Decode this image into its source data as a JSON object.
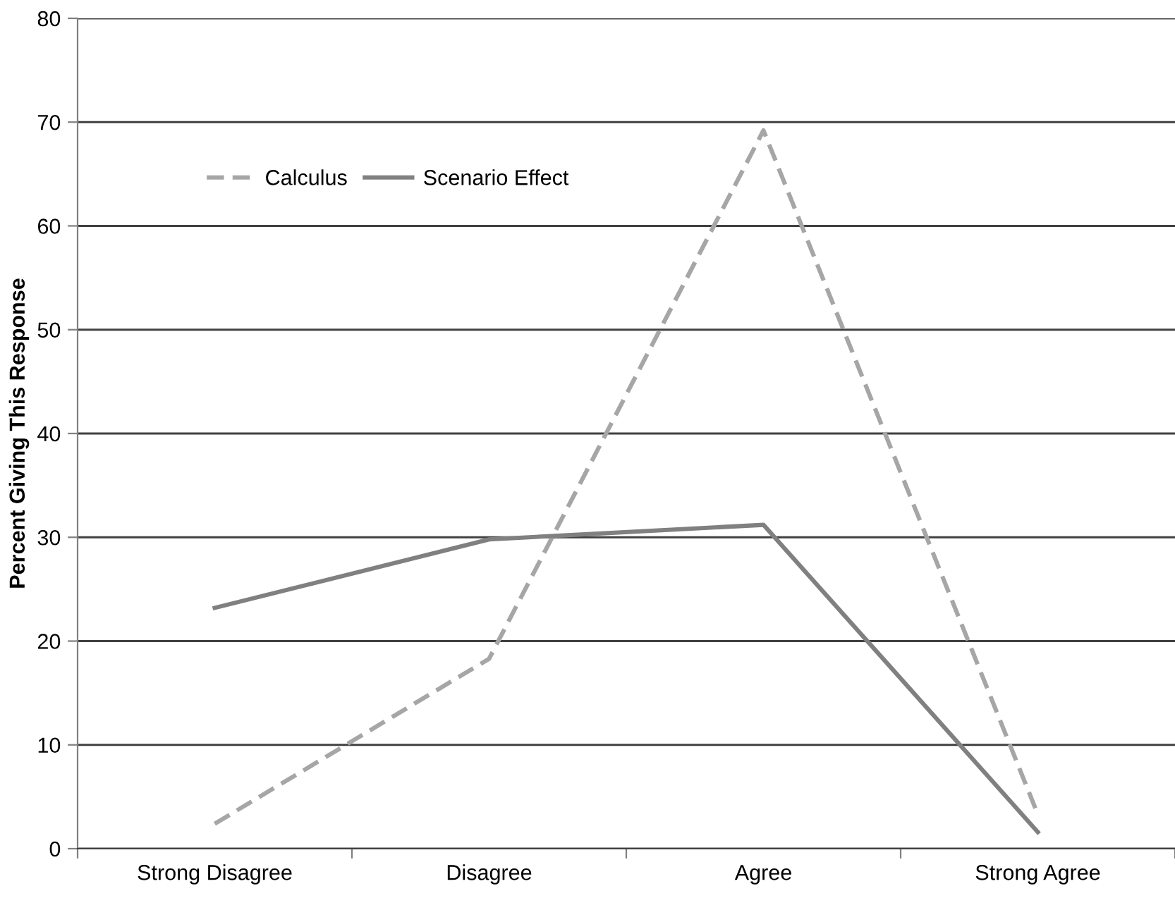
{
  "chart_data": {
    "type": "line",
    "ylabel": "Percent Giving This Response",
    "categories": [
      "Strong Disagree",
      "Disagree",
      "Agree",
      "Strong Agree"
    ],
    "series": [
      {
        "name": "Calculus",
        "color": "#a6a6a6",
        "line_style": "dashed",
        "values": [
          2.4,
          18.3,
          69.2,
          3.3
        ]
      },
      {
        "name": "Scenario Effect",
        "color": "#808080",
        "line_style": "solid",
        "values": [
          23.2,
          29.8,
          31.2,
          1.6
        ]
      }
    ],
    "ylim": [
      0,
      80
    ],
    "yticks": [
      0,
      10,
      20,
      30,
      40,
      50,
      60,
      70,
      80
    ],
    "grid": "y",
    "legend": "top left",
    "marker": "none"
  }
}
